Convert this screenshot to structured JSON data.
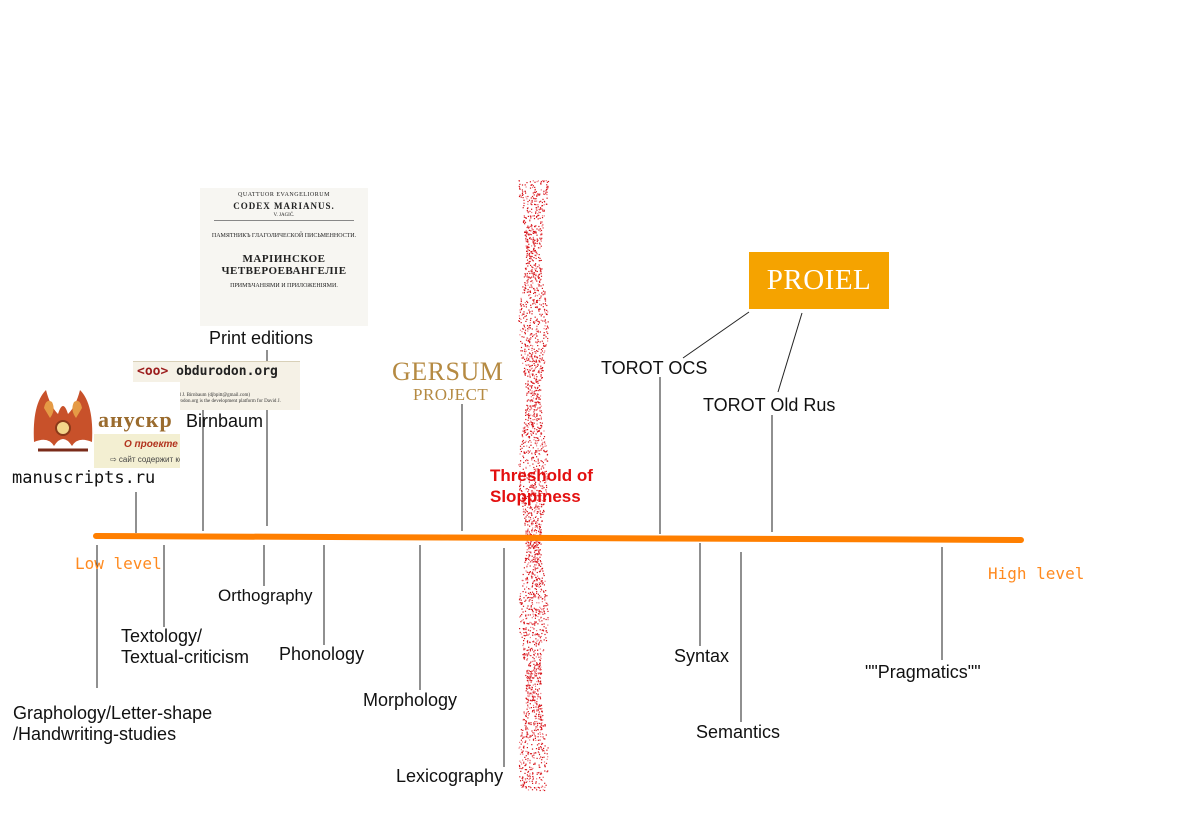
{
  "axis": {
    "low_label": "Low level",
    "high_label": "High level",
    "color": "#ff7f00"
  },
  "threshold": {
    "label": "Threshold of Sloppiness",
    "color": "#e31010"
  },
  "above_axis": {
    "print_editions": "Print editions",
    "birnbaum": "Birnbaum",
    "manuscripts": "manuscripts.ru",
    "torot_ocs": "TOROT OCS",
    "torot_old_rus": "TOROT Old Rus"
  },
  "below_axis": {
    "graphology": "Graphology/Letter-shape\n/Handwriting-studies",
    "textology": "Textology/\nTextual-criticism",
    "orthography": "Orthography",
    "phonology": "Phonology",
    "morphology": "Morphology",
    "lexicography": "Lexicography",
    "syntax": "Syntax",
    "semantics": "Semantics",
    "pragmatics": "\"\"Pragmatics\"\""
  },
  "logos": {
    "proiel": "PROIEL",
    "gersum_line1": "GERSUM",
    "gersum_line2": "PROJECT",
    "gersum_color": "#b58a42",
    "proiel_color": "#f5a300",
    "obdurodon_code": "<oo>",
    "obdurodon_name": "obdurodon.org",
    "obdurodon_line1": "Maintained by: David J. Birnbaum (djbpitt@gmail.com)",
    "obdurodon_line2": "About this site: obdurodon.org is the development platform for David J.",
    "manuscripts_word": "анускр",
    "manuscripts_about": "О проекте",
    "manuscripts_desc": "⇨ сайт содержит коллекц",
    "codex_line1": "QUATTUOR EVANGELIORUM",
    "codex_line2": "CODEX MARIANUS.",
    "codex_line3": "V. JAGIĆ.",
    "codex_line4": "ПАМЯТНИКЪ ГЛАГОЛИЧЕСКОЙ ПИСЬМЕННОСТИ.",
    "codex_line5": "МАРІИНСКОЕ ЧЕТВЕРОЕВАНГЕЛІЕ",
    "codex_line6": "ПРИМѢЧАНІЯМИ И ПРИЛОЖЕНІЯМИ."
  }
}
